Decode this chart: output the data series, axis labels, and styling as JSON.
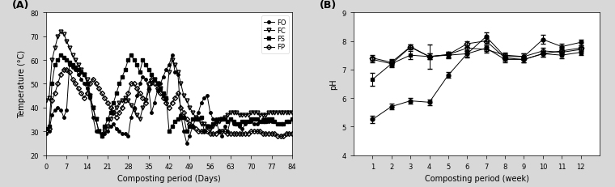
{
  "fig_bgcolor": "#d8d8d8",
  "panel_A": {
    "label": "(A)",
    "xlabel": "Composting period (Days)",
    "ylabel": "Temperature (°C)",
    "xlim": [
      0,
      84
    ],
    "ylim": [
      20,
      80
    ],
    "xticks": [
      0,
      7,
      14,
      21,
      28,
      35,
      42,
      49,
      56,
      63,
      70,
      77,
      84
    ],
    "yticks": [
      20,
      30,
      40,
      50,
      60,
      70,
      80
    ],
    "FO": {
      "x": [
        0,
        1,
        2,
        3,
        4,
        5,
        6,
        7,
        8,
        9,
        10,
        11,
        12,
        13,
        14,
        15,
        16,
        17,
        18,
        19,
        20,
        21,
        22,
        23,
        24,
        25,
        26,
        27,
        28,
        29,
        30,
        31,
        32,
        33,
        34,
        35,
        36,
        37,
        38,
        39,
        40,
        41,
        42,
        43,
        44,
        45,
        46,
        47,
        48,
        49,
        50,
        51,
        52,
        53,
        54,
        55,
        56,
        57,
        58,
        59,
        60,
        61,
        62,
        63,
        64,
        65,
        66,
        67,
        68,
        69,
        70,
        71,
        72,
        73,
        74,
        75,
        76,
        77,
        78,
        79,
        80,
        81,
        82,
        83,
        84
      ],
      "y": [
        29,
        30,
        37,
        39,
        40,
        39,
        36,
        39,
        58,
        57,
        56,
        54,
        52,
        50,
        48,
        44,
        36,
        30,
        30,
        29,
        29,
        30,
        32,
        33,
        31,
        30,
        29,
        29,
        28,
        36,
        40,
        45,
        50,
        53,
        52,
        48,
        38,
        42,
        47,
        50,
        53,
        56,
        58,
        62,
        55,
        54,
        37,
        30,
        25,
        28,
        32,
        35,
        38,
        42,
        44,
        45,
        38,
        35,
        35,
        30,
        28,
        32,
        30,
        35,
        33,
        33,
        32,
        31,
        33,
        34,
        34,
        33,
        33,
        34,
        35,
        35,
        34,
        34,
        34,
        33,
        33,
        33,
        34,
        34,
        35
      ]
    },
    "FC": {
      "x": [
        0,
        1,
        2,
        3,
        4,
        5,
        6,
        7,
        8,
        9,
        10,
        11,
        12,
        13,
        14,
        15,
        16,
        17,
        18,
        19,
        20,
        21,
        22,
        23,
        24,
        25,
        26,
        27,
        28,
        29,
        30,
        31,
        32,
        33,
        34,
        35,
        36,
        37,
        38,
        39,
        40,
        41,
        42,
        43,
        44,
        45,
        46,
        47,
        48,
        49,
        50,
        51,
        52,
        53,
        54,
        55,
        56,
        57,
        58,
        59,
        60,
        61,
        62,
        63,
        64,
        65,
        66,
        67,
        68,
        69,
        70,
        71,
        72,
        73,
        74,
        75,
        76,
        77,
        78,
        79,
        80,
        81,
        82,
        83,
        84
      ],
      "y": [
        43,
        44,
        60,
        65,
        70,
        72,
        71,
        68,
        65,
        62,
        60,
        58,
        56,
        54,
        52,
        45,
        40,
        35,
        30,
        28,
        30,
        32,
        35,
        38,
        40,
        42,
        43,
        44,
        43,
        41,
        39,
        37,
        35,
        40,
        43,
        47,
        50,
        52,
        50,
        48,
        45,
        43,
        55,
        60,
        58,
        55,
        50,
        45,
        43,
        40,
        38,
        36,
        35,
        33,
        33,
        32,
        31,
        32,
        33,
        34,
        35,
        36,
        37,
        38,
        38,
        38,
        37,
        37,
        37,
        37,
        38,
        38,
        38,
        37,
        37,
        37,
        38,
        38,
        38,
        38,
        38,
        38,
        38,
        38,
        38
      ]
    },
    "FS": {
      "x": [
        0,
        1,
        2,
        3,
        4,
        5,
        6,
        7,
        8,
        9,
        10,
        11,
        12,
        13,
        14,
        15,
        16,
        17,
        18,
        19,
        20,
        21,
        22,
        23,
        24,
        25,
        26,
        27,
        28,
        29,
        30,
        31,
        32,
        33,
        34,
        35,
        36,
        37,
        38,
        39,
        40,
        41,
        42,
        43,
        44,
        45,
        46,
        47,
        48,
        49,
        50,
        51,
        52,
        53,
        54,
        55,
        56,
        57,
        58,
        59,
        60,
        61,
        62,
        63,
        64,
        65,
        66,
        67,
        68,
        69,
        70,
        71,
        72,
        73,
        74,
        75,
        76,
        77,
        78,
        79,
        80,
        81,
        82,
        83,
        84
      ],
      "y": [
        31,
        32,
        50,
        58,
        60,
        62,
        61,
        60,
        59,
        58,
        57,
        56,
        55,
        54,
        50,
        45,
        40,
        35,
        30,
        28,
        32,
        35,
        38,
        42,
        46,
        50,
        53,
        56,
        60,
        62,
        60,
        58,
        55,
        60,
        58,
        56,
        54,
        52,
        50,
        48,
        46,
        44,
        30,
        32,
        34,
        35,
        36,
        36,
        30,
        32,
        35,
        35,
        35,
        36,
        30,
        32,
        32,
        33,
        34,
        35,
        35,
        35,
        34,
        35,
        34,
        33,
        33,
        34,
        34,
        34,
        35,
        35,
        35,
        34,
        34,
        34,
        35,
        35,
        34,
        33,
        33,
        33,
        34,
        34,
        35
      ]
    },
    "FP": {
      "x": [
        0,
        1,
        2,
        3,
        4,
        5,
        6,
        7,
        8,
        9,
        10,
        11,
        12,
        13,
        14,
        15,
        16,
        17,
        18,
        19,
        20,
        21,
        22,
        23,
        24,
        25,
        26,
        27,
        28,
        29,
        30,
        31,
        32,
        33,
        34,
        35,
        36,
        37,
        38,
        39,
        40,
        41,
        42,
        43,
        44,
        45,
        46,
        47,
        48,
        49,
        50,
        51,
        52,
        53,
        54,
        55,
        56,
        57,
        58,
        59,
        60,
        61,
        62,
        63,
        64,
        65,
        66,
        67,
        68,
        69,
        70,
        71,
        72,
        73,
        74,
        75,
        76,
        77,
        78,
        79,
        80,
        81,
        82,
        83,
        84
      ],
      "y": [
        30,
        31,
        43,
        46,
        50,
        54,
        56,
        56,
        55,
        52,
        50,
        48,
        46,
        44,
        46,
        50,
        52,
        50,
        48,
        46,
        44,
        42,
        40,
        38,
        36,
        38,
        40,
        43,
        46,
        50,
        50,
        48,
        46,
        44,
        42,
        50,
        52,
        50,
        48,
        46,
        44,
        42,
        40,
        42,
        44,
        46,
        40,
        38,
        35,
        33,
        32,
        31,
        30,
        30,
        30,
        30,
        29,
        29,
        29,
        30,
        30,
        30,
        29,
        29,
        29,
        29,
        29,
        29,
        29,
        29,
        30,
        30,
        30,
        30,
        29,
        29,
        29,
        29,
        29,
        28,
        28,
        28,
        29,
        29,
        29
      ]
    }
  },
  "panel_B": {
    "label": "(B)",
    "xlabel": "Composting period (week)",
    "ylabel": "pH",
    "xlim": [
      0,
      13
    ],
    "ylim": [
      4,
      9
    ],
    "xticks": [
      1,
      2,
      3,
      4,
      5,
      6,
      7,
      8,
      9,
      10,
      11,
      12
    ],
    "yticks": [
      4,
      5,
      6,
      7,
      8,
      9
    ],
    "FO": {
      "x": [
        1,
        2,
        3,
        4,
        5,
        6,
        7,
        8,
        9,
        10,
        11,
        12
      ],
      "y": [
        5.25,
        5.7,
        5.9,
        5.85,
        6.8,
        7.55,
        8.15,
        7.45,
        7.45,
        8.05,
        7.8,
        7.95
      ],
      "yerr": [
        0.12,
        0.1,
        0.1,
        0.1,
        0.1,
        0.12,
        0.15,
        0.1,
        0.1,
        0.15,
        0.1,
        0.1
      ]
    },
    "FC": {
      "x": [
        1,
        2,
        3,
        4,
        5,
        6,
        7,
        8,
        9,
        10,
        11,
        12
      ],
      "y": [
        7.35,
        7.2,
        7.78,
        7.45,
        7.52,
        7.75,
        7.7,
        7.5,
        7.45,
        7.65,
        7.6,
        7.7
      ],
      "yerr": [
        0.1,
        0.1,
        0.08,
        0.1,
        0.1,
        0.1,
        0.1,
        0.1,
        0.1,
        0.1,
        0.1,
        0.1
      ]
    },
    "FS": {
      "x": [
        1,
        2,
        3,
        4,
        5,
        6,
        7,
        8,
        9,
        10,
        11,
        12
      ],
      "y": [
        6.65,
        7.2,
        7.5,
        7.45,
        7.5,
        7.55,
        7.75,
        7.35,
        7.35,
        7.55,
        7.5,
        7.6
      ],
      "yerr": [
        0.22,
        0.12,
        0.15,
        0.42,
        0.1,
        0.1,
        0.1,
        0.1,
        0.1,
        0.1,
        0.1,
        0.1
      ]
    },
    "FP": {
      "x": [
        1,
        2,
        3,
        4,
        5,
        6,
        7,
        8,
        9,
        10,
        11,
        12
      ],
      "y": [
        7.4,
        7.25,
        7.8,
        7.45,
        7.52,
        7.9,
        8.0,
        7.4,
        7.35,
        7.55,
        7.65,
        7.75
      ],
      "yerr": [
        0.1,
        0.1,
        0.08,
        0.1,
        0.1,
        0.1,
        0.1,
        0.1,
        0.1,
        0.1,
        0.1,
        0.1
      ]
    }
  }
}
